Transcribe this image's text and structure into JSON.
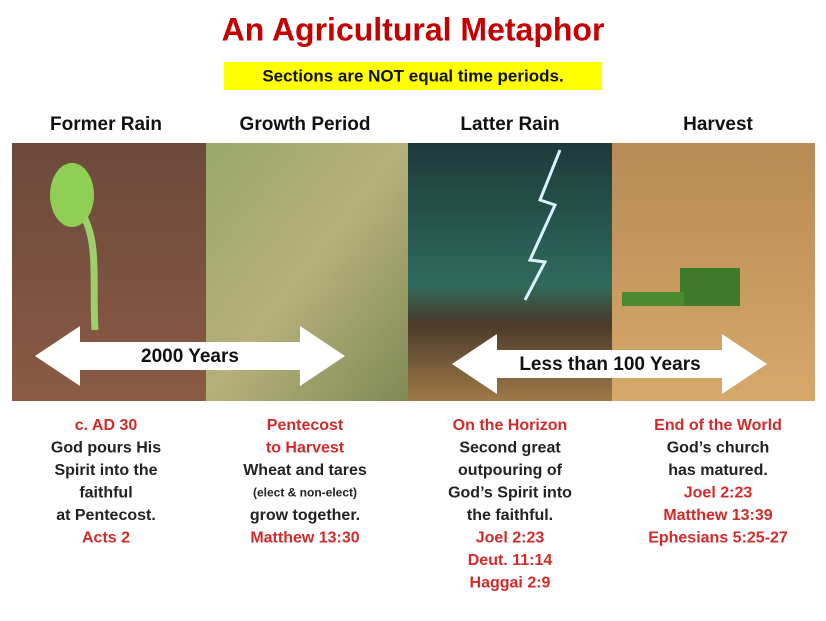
{
  "title": "An Agricultural Metaphor",
  "subtitle": "Sections are NOT equal time periods.",
  "arrows": [
    {
      "label": "2000 Years"
    },
    {
      "label": "Less than 100 Years"
    }
  ],
  "columns": [
    {
      "heading": "Former Rain",
      "lines": [
        {
          "text": "c. AD 30",
          "style": "red"
        },
        {
          "text": "God pours His",
          "style": "dark"
        },
        {
          "text": "Spirit into the",
          "style": "dark"
        },
        {
          "text": "faithful",
          "style": "dark"
        },
        {
          "text": "at Pentecost.",
          "style": "dark"
        },
        {
          "text": "Acts 2",
          "style": "red"
        }
      ]
    },
    {
      "heading": "Growth Period",
      "lines": [
        {
          "text": "Pentecost",
          "style": "red"
        },
        {
          "text": "to Harvest",
          "style": "red"
        },
        {
          "text": "Wheat and tares",
          "style": "dark"
        },
        {
          "text": "(elect & non-elect)",
          "style": "small"
        },
        {
          "text": "grow together.",
          "style": "dark"
        },
        {
          "text": "Matthew 13:30",
          "style": "red"
        }
      ]
    },
    {
      "heading": "Latter Rain",
      "lines": [
        {
          "text": "On the Horizon",
          "style": "red"
        },
        {
          "text": "Second great",
          "style": "dark"
        },
        {
          "text": "outpouring of",
          "style": "dark"
        },
        {
          "text": "God’s Spirit into",
          "style": "dark"
        },
        {
          "text": "the faithful.",
          "style": "dark"
        },
        {
          "text": "Joel 2:23",
          "style": "red"
        },
        {
          "text": "Deut. 11:14",
          "style": "red"
        },
        {
          "text": "Haggai 2:9",
          "style": "red"
        }
      ]
    },
    {
      "heading": "Harvest",
      "lines": [
        {
          "text": "End of the World",
          "style": "red"
        },
        {
          "text": "God’s church",
          "style": "dark"
        },
        {
          "text": "has matured.",
          "style": "dark"
        },
        {
          "text": "Joel 2:23",
          "style": "red"
        },
        {
          "text": "Matthew 13:39",
          "style": "red"
        },
        {
          "text": "Ephesians 5:25-27",
          "style": "red"
        }
      ]
    }
  ]
}
